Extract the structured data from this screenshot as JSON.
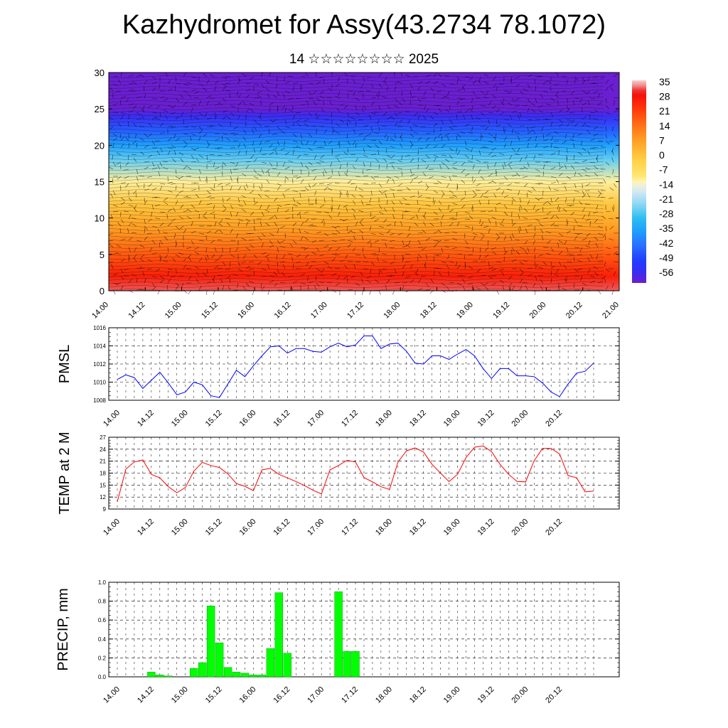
{
  "title": "Kazhydromet for Assy(43.2734 78.1072)",
  "subtitle": "14 ☆☆☆☆☆☆☆☆ 2025",
  "time_ticks": [
    "14.00",
    "14.12",
    "15.00",
    "15.12",
    "16.00",
    "16.12",
    "17.00",
    "17.12",
    "18.00",
    "18.12",
    "19.00",
    "19.12",
    "20.00",
    "20.12",
    "21.00"
  ],
  "colors": {
    "pmsl_line": "#0000ff",
    "temp_line": "#ff0000",
    "precip_bar": "#00ff00",
    "precip_edge": "#008800"
  },
  "chart_data": [
    {
      "type": "heatmap",
      "title": "",
      "xlabel": "",
      "ylabel": "",
      "ylim": [
        0,
        30
      ],
      "y_ticks": [
        "0",
        "5",
        "10",
        "15",
        "20",
        "25",
        "30"
      ],
      "colorbar_labels": [
        "35",
        "28",
        "21",
        "14",
        "7",
        "0",
        "-7",
        "-14",
        "-21",
        "-28",
        "-35",
        "-42",
        "-49",
        "-56"
      ],
      "colorbar_range": [
        -60,
        40
      ],
      "temperature_profile": {
        "levels": [
          0,
          2,
          5,
          8,
          10,
          12,
          15,
          18,
          20,
          22,
          24,
          25,
          27,
          30
        ],
        "values": [
          36,
          30,
          21,
          12,
          7,
          2,
          -9,
          -24,
          -34,
          -44,
          -55,
          -63,
          -66,
          -72
        ]
      },
      "wind_barbs": true
    },
    {
      "type": "line",
      "ylabel": "PMSL",
      "ylim": [
        1008,
        1016
      ],
      "y_ticks": [
        "1008",
        "1010",
        "1012",
        "1014",
        "1016"
      ],
      "series": [
        {
          "values": [
            1010.3,
            1010.8,
            1010.5,
            1009.3,
            1010.2,
            1011.1,
            1009.9,
            1008.6,
            1008.9,
            1010.0,
            1009.7,
            1008.5,
            1008.3,
            1009.8,
            1011.3,
            1010.6,
            1011.8,
            1012.9,
            1013.9,
            1014.0,
            1013.2,
            1013.7,
            1013.7,
            1013.4,
            1013.3,
            1013.9,
            1014.3,
            1013.9,
            1014.1,
            1015.1,
            1015.1,
            1013.7,
            1014.2,
            1014.3,
            1013.4,
            1012.1,
            1012.0,
            1012.9,
            1012.9,
            1012.5,
            1013.1,
            1013.6,
            1012.9,
            1011.5,
            1010.4,
            1011.5,
            1011.5,
            1010.7,
            1010.7,
            1010.6,
            1009.9,
            1008.9,
            1008.4,
            1009.8,
            1011.0,
            1011.2,
            1012.1
          ]
        }
      ]
    },
    {
      "type": "line",
      "ylabel": "TEMP at 2 M",
      "ylim": [
        9,
        27
      ],
      "y_ticks": [
        "9",
        "12",
        "15",
        "18",
        "21",
        "24",
        "27"
      ],
      "series": [
        {
          "values": [
            10.8,
            19.0,
            20.8,
            21.3,
            17.7,
            16.8,
            14.6,
            13.1,
            14.4,
            18.5,
            20.7,
            19.9,
            19.4,
            17.8,
            15.4,
            14.7,
            13.6,
            18.8,
            19.2,
            17.7,
            16.8,
            15.9,
            14.9,
            13.7,
            12.8,
            18.8,
            19.9,
            21.2,
            20.8,
            16.9,
            15.8,
            14.6,
            13.9,
            20.8,
            23.6,
            24.3,
            23.3,
            20.2,
            18.0,
            15.9,
            17.7,
            21.9,
            24.5,
            24.8,
            23.4,
            20.2,
            17.7,
            15.9,
            15.8,
            21.1,
            24.2,
            24.2,
            22.8,
            17.4,
            16.8,
            13.3,
            13.5
          ]
        }
      ]
    },
    {
      "type": "bar",
      "ylabel": "PRECIP, mm",
      "ylim": [
        0.0,
        1.0
      ],
      "y_ticks": [
        "0.0",
        "0.2",
        "0.4",
        "0.6",
        "0.8",
        "1.0"
      ],
      "bin_hours": 3,
      "values": [
        0,
        0,
        0,
        0,
        0.05,
        0.02,
        0.01,
        0,
        0,
        0.09,
        0.15,
        0.75,
        0.36,
        0.1,
        0.05,
        0.04,
        0.02,
        0.02,
        0.3,
        0.89,
        0.25,
        0,
        0,
        0,
        0,
        0,
        0.9,
        0.27,
        0.27,
        0,
        0,
        0,
        0,
        0,
        0,
        0,
        0,
        0,
        0,
        0,
        0,
        0,
        0,
        0,
        0,
        0,
        0,
        0,
        0,
        0,
        0,
        0,
        0,
        0,
        0,
        0
      ]
    }
  ]
}
